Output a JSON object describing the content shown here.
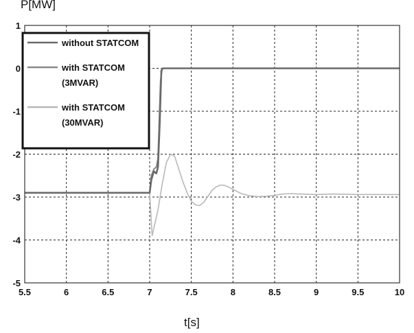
{
  "chart_data": {
    "type": "line",
    "xlabel": "t[s]",
    "ylabel": "P[MW]",
    "xlim": [
      5.5,
      10
    ],
    "ylim": [
      -5,
      1
    ],
    "xticks": [
      5.5,
      6,
      6.5,
      7,
      7.5,
      8,
      8.5,
      9,
      9.5,
      10
    ],
    "yticks": [
      -5,
      -4,
      -3,
      -2,
      -1,
      0,
      1
    ],
    "xtick_labels": [
      "5.5",
      "6",
      "6.5",
      "7",
      "7.5",
      "8",
      "8.5",
      "9",
      "9.5",
      "10"
    ],
    "ytick_labels": [
      "-5",
      "-4",
      "-3",
      "-2",
      "-1",
      "0",
      "1"
    ],
    "grid": true,
    "legend_position": "top-left",
    "legend": [
      {
        "text": [
          "without STATCOM"
        ],
        "color": "#6a6a6a"
      },
      {
        "text": [
          "with STATCOM",
          "(3MVAR)"
        ],
        "color": "#888888"
      },
      {
        "text": [
          "with STATCOM",
          "(30MVAR)"
        ],
        "color": "#b8b8b8"
      }
    ],
    "series": [
      {
        "name": "without STATCOM",
        "color": "#6a6a6a",
        "points": [
          [
            5.5,
            -2.9
          ],
          [
            7.0,
            -2.9
          ],
          [
            7.02,
            -2.6
          ],
          [
            7.05,
            -2.4
          ],
          [
            7.08,
            -2.45
          ],
          [
            7.1,
            -2.3
          ],
          [
            7.12,
            -1.3
          ],
          [
            7.14,
            -0.05
          ],
          [
            7.16,
            0
          ],
          [
            10.0,
            0
          ]
        ]
      },
      {
        "name": "with STATCOM (3MVAR)",
        "color": "#888888",
        "points": [
          [
            5.5,
            -2.9
          ],
          [
            7.0,
            -2.9
          ],
          [
            7.02,
            -2.5
          ],
          [
            7.05,
            -2.35
          ],
          [
            7.08,
            -2.3
          ],
          [
            7.1,
            -2.1
          ],
          [
            7.13,
            -0.3
          ],
          [
            7.15,
            0
          ],
          [
            10.0,
            0
          ]
        ]
      },
      {
        "name": "with STATCOM (30MVAR)",
        "color": "#b8b8b8",
        "points": [
          [
            5.5,
            -2.9
          ],
          [
            7.0,
            -2.9
          ],
          [
            7.03,
            -3.9
          ],
          [
            7.1,
            -3.3
          ],
          [
            7.15,
            -2.7
          ],
          [
            7.2,
            -2.2
          ],
          [
            7.25,
            -2.0
          ],
          [
            7.3,
            -2.05
          ],
          [
            7.35,
            -2.35
          ],
          [
            7.4,
            -2.65
          ],
          [
            7.45,
            -2.9
          ],
          [
            7.5,
            -3.1
          ],
          [
            7.55,
            -3.18
          ],
          [
            7.6,
            -3.2
          ],
          [
            7.65,
            -3.12
          ],
          [
            7.7,
            -2.98
          ],
          [
            7.75,
            -2.84
          ],
          [
            7.8,
            -2.76
          ],
          [
            7.85,
            -2.72
          ],
          [
            7.9,
            -2.73
          ],
          [
            7.95,
            -2.77
          ],
          [
            8.0,
            -2.82
          ],
          [
            8.1,
            -2.92
          ],
          [
            8.2,
            -2.97
          ],
          [
            8.3,
            -2.99
          ],
          [
            8.4,
            -2.98
          ],
          [
            8.5,
            -2.96
          ],
          [
            8.6,
            -2.93
          ],
          [
            8.7,
            -2.92
          ],
          [
            8.8,
            -2.93
          ],
          [
            9.0,
            -2.94
          ],
          [
            9.2,
            -2.93
          ],
          [
            9.5,
            -2.94
          ],
          [
            10.0,
            -2.94
          ]
        ]
      }
    ]
  }
}
